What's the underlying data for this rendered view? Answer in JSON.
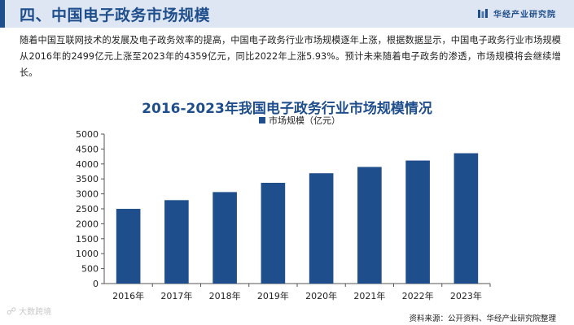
{
  "header": {
    "title": "四、中国电子政务市场规模",
    "brand_name": "华经产业研究院",
    "accent": "#1f4e8c"
  },
  "intro": {
    "text": "随着中国互联网技术的发展及电子政务效率的提高，中国电子政务行业市场规模逐年上涨，根据数据显示，中国电子政务行业市场规模从2016年的2499亿元上涨至2023年的4359亿元，同比2022年上涨5.93%。预计未来随着电子政务的渗透，市场规模将会继续增长。"
  },
  "chart_data": {
    "type": "bar",
    "title": "2016-2023年我国电子政务行业市场规模情况",
    "categories": [
      "2016年",
      "2017年",
      "2018年",
      "2019年",
      "2020年",
      "2021年",
      "2022年",
      "2023年"
    ],
    "series": [
      {
        "name": "市场规模（亿元）",
        "values": [
          2499,
          2790,
          3060,
          3370,
          3690,
          3900,
          4115,
          4359
        ],
        "color": "#1f4e8c"
      }
    ],
    "ylim": [
      0,
      5000
    ],
    "yticks": [
      0,
      500,
      1000,
      1500,
      2000,
      2500,
      3000,
      3500,
      4000,
      4500,
      5000
    ],
    "grid": false,
    "legend": "top-center"
  },
  "source": "资料来源：公开资料、华经产业研究院整理",
  "corner_mark": {
    "icon": "camera-icon",
    "text": "大数跨境"
  }
}
